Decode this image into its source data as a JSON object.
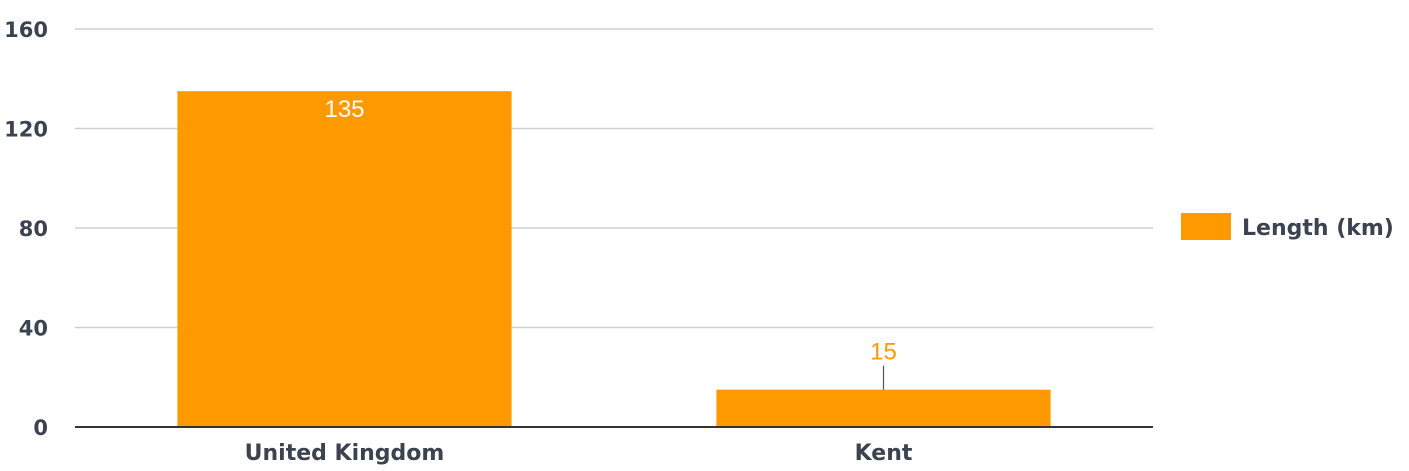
{
  "chart_data": {
    "type": "bar",
    "categories": [
      "United Kingdom",
      "Kent"
    ],
    "series": [
      {
        "name": "Length (km)",
        "values": [
          135,
          15
        ],
        "color": "#ff9900"
      }
    ],
    "ylim": [
      0,
      160
    ],
    "yticks": [
      "0",
      "40",
      "80",
      "120",
      "160"
    ],
    "data_labels": [
      "135",
      "15"
    ],
    "grid": true,
    "legend": "right",
    "colors": {
      "bar": "#ff9900",
      "grid": "#d0d0d0",
      "axis": "#333333",
      "text": "#3b4350",
      "label_inside": "#ffffff",
      "label_outside": "#ff9900"
    }
  }
}
